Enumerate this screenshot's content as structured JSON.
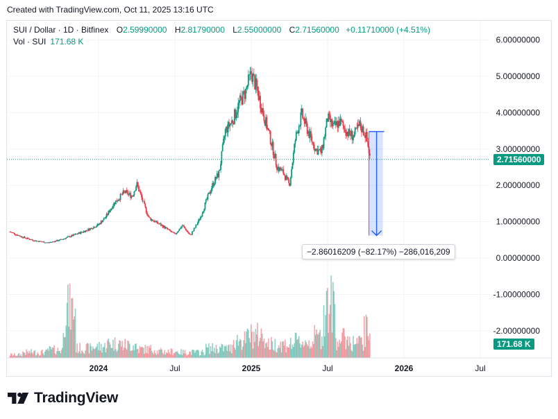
{
  "header": {
    "created": "Created with TradingView.com, Oct 11, 2025 13:16 UTC"
  },
  "legend": {
    "symbol": "SUI / Dollar · 1D · Bitfinex",
    "open_key": "O",
    "open": "2.59990000",
    "high_key": "H",
    "high": "2.81790000",
    "low_key": "L",
    "low": "2.55000000",
    "close_key": "C",
    "close": "2.71560000",
    "change": "+0.11710000 (+4.51%)",
    "vol_label": "Vol · SUI",
    "vol_value": "171.68 K"
  },
  "price_badge": "2.71560000",
  "volume_badge": "171.68 K",
  "measure_label": "−2.86016209 (−82.17%) −286,016,209",
  "logo_text": "TradingView",
  "colors": {
    "up": "#089981",
    "down": "#f23645",
    "measure": "#2962ff",
    "grid": "#f0f3fa"
  },
  "chart_data": {
    "type": "line",
    "title": "SUI / Dollar · 1D · Bitfinex",
    "ylim": [
      -2.6,
      6.5
    ],
    "y_ticks": [
      "6.00000000",
      "5.00000000",
      "4.00000000",
      "3.00000000",
      "2.00000000",
      "1.00000000",
      "0.00000000",
      "-1.00000000",
      "-2.00000000"
    ],
    "y_tick_values": [
      6,
      5,
      4,
      3,
      2,
      1,
      0,
      -1,
      -2
    ],
    "x_ticks": [
      {
        "label": "2024",
        "t": 2024.0,
        "bold": true
      },
      {
        "label": "Jul",
        "t": 2024.5,
        "bold": false
      },
      {
        "label": "2025",
        "t": 2025.0,
        "bold": true
      },
      {
        "label": "Jul",
        "t": 2025.5,
        "bold": false
      },
      {
        "label": "2026",
        "t": 2026.0,
        "bold": true
      },
      {
        "label": "Jul",
        "t": 2026.5,
        "bold": false
      }
    ],
    "grid": true,
    "last_close": 2.7156,
    "series": [
      {
        "name": "SUI / Dollar",
        "x": [
          2023.42,
          2023.5,
          2023.58,
          2023.67,
          2023.75,
          2023.83,
          2023.92,
          2024.0,
          2024.05,
          2024.1,
          2024.17,
          2024.22,
          2024.25,
          2024.29,
          2024.33,
          2024.42,
          2024.5,
          2024.55,
          2024.6,
          2024.63,
          2024.67,
          2024.71,
          2024.75,
          2024.79,
          2024.83,
          2024.88,
          2024.92,
          2024.96,
          2025.0,
          2025.04,
          2025.08,
          2025.13,
          2025.17,
          2025.21,
          2025.25,
          2025.29,
          2025.33,
          2025.38,
          2025.42,
          2025.46,
          2025.5,
          2025.54,
          2025.58,
          2025.63,
          2025.67,
          2025.71,
          2025.75,
          2025.78
        ],
        "values": [
          0.72,
          0.58,
          0.48,
          0.42,
          0.5,
          0.62,
          0.76,
          0.92,
          1.15,
          1.5,
          1.82,
          1.7,
          2.05,
          1.55,
          1.1,
          0.88,
          0.65,
          0.9,
          0.62,
          0.82,
          1.15,
          1.62,
          2.05,
          2.35,
          3.5,
          3.8,
          4.25,
          4.55,
          5.1,
          4.6,
          3.95,
          3.2,
          2.5,
          2.35,
          2.0,
          3.3,
          3.95,
          3.4,
          3.0,
          2.9,
          3.85,
          3.6,
          3.75,
          3.45,
          3.35,
          3.65,
          3.4,
          2.7156
        ]
      }
    ],
    "volume": {
      "name": "Vol · SUI",
      "x": [
        2023.42,
        2023.58,
        2023.75,
        2023.78,
        2023.92,
        2024.0,
        2024.1,
        2024.2,
        2024.3,
        2024.45,
        2024.6,
        2024.8,
        2024.95,
        2025.0,
        2025.2,
        2025.35,
        2025.45,
        2025.5,
        2025.6,
        2025.7,
        2025.78
      ],
      "values": [
        20000,
        35000,
        50000,
        300000,
        60000,
        70000,
        90000,
        80000,
        55000,
        40000,
        35000,
        60000,
        110000,
        140000,
        85000,
        100000,
        130000,
        330000,
        120000,
        95000,
        171680
      ]
    },
    "measure": {
      "from": 3.48,
      "to": 0.62,
      "change": -2.86016209,
      "percent": -82.17
    }
  }
}
